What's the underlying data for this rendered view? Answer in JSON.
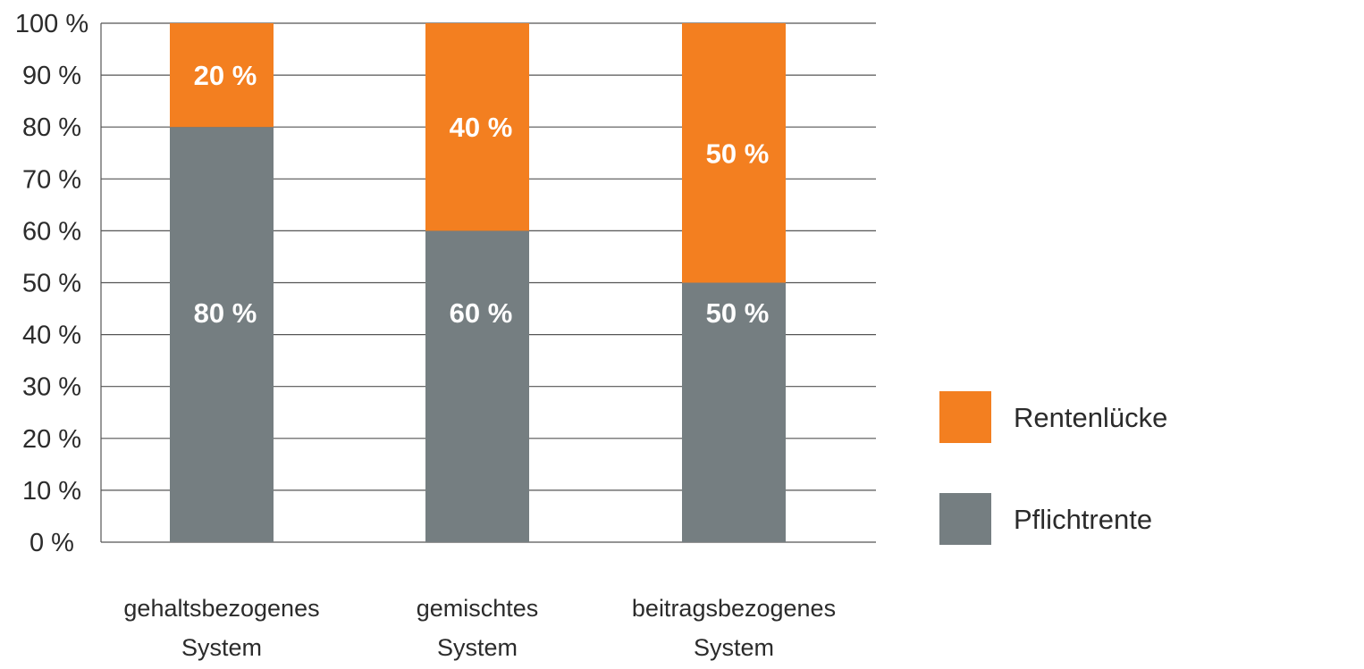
{
  "chart_data": {
    "type": "bar",
    "stacked": true,
    "categories": [
      [
        "gehaltsbezogenes",
        "System"
      ],
      [
        "gemischtes",
        "System"
      ],
      [
        "beitragsbezogenes",
        "System"
      ]
    ],
    "series": [
      {
        "name": "Pflichtrente",
        "values": [
          80,
          60,
          50
        ],
        "labels": [
          "80 %",
          "60 %",
          "50 %"
        ],
        "color": "#757e81"
      },
      {
        "name": "Rentenlücke",
        "values": [
          20,
          40,
          50
        ],
        "labels": [
          "20 %",
          "40 %",
          "50 %"
        ],
        "color": "#f37f20"
      }
    ],
    "ylim": [
      0,
      100
    ],
    "yticks": [
      "0 %",
      "10 %",
      "20 %",
      "30 %",
      "40 %",
      "50 %",
      "60 %",
      "70 %",
      "80 %",
      "90 %",
      "100 %"
    ],
    "grid": true,
    "legend": {
      "placement": "right",
      "entries": [
        {
          "label": "Rentenlücke",
          "color": "#f37f20"
        },
        {
          "label": "Pflichtrente",
          "color": "#757e81"
        }
      ]
    }
  }
}
